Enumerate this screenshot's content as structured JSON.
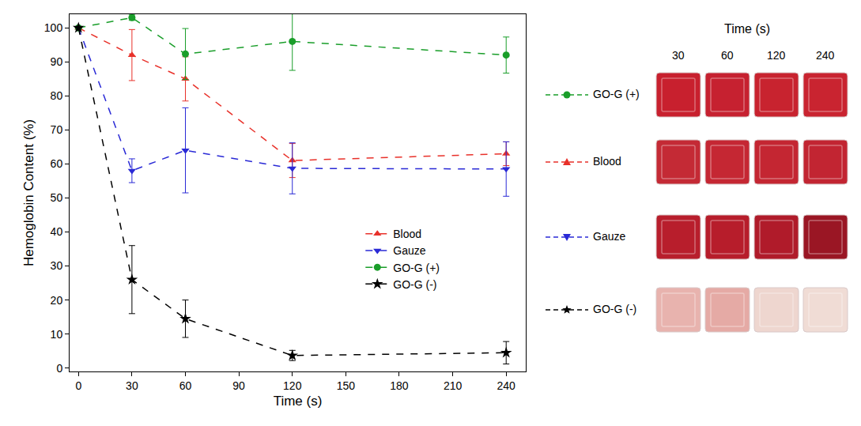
{
  "chart_data": {
    "type": "line",
    "x_label": "Time (s)",
    "y_label": "Hemoglobin Content (%)",
    "x": [
      0,
      30,
      60,
      120,
      240
    ],
    "xlim": [
      -5,
      251
    ],
    "xticks": [
      0,
      30,
      60,
      90,
      120,
      150,
      180,
      210,
      240
    ],
    "ylim": [
      -1,
      104
    ],
    "yticks": [
      0,
      10,
      20,
      30,
      40,
      50,
      60,
      70,
      80,
      90,
      100
    ],
    "grid": false,
    "legend": "right",
    "series": [
      {
        "name": "Blood",
        "color": "#e8312a",
        "marker": "triangle-up",
        "line_style": "dash",
        "values": [
          100,
          92,
          85,
          61,
          63
        ],
        "errors": [
          0,
          7.5,
          6.5,
          5,
          3.5
        ]
      },
      {
        "name": "Gauze",
        "color": "#2a2ad6",
        "marker": "triangle-down",
        "line_style": "dash",
        "values": [
          100,
          58,
          64,
          58.7,
          58.5
        ],
        "errors": [
          0,
          3.5,
          12.5,
          7.5,
          8
        ]
      },
      {
        "name": "GO-G (+)",
        "color": "#1a9e2a",
        "marker": "circle",
        "line_style": "dash",
        "values": [
          100,
          103,
          92.3,
          96,
          92
        ],
        "errors": [
          0,
          0.8,
          7.5,
          8.5,
          5.3
        ]
      },
      {
        "name": "GO-G (-)",
        "color": "#000000",
        "marker": "star",
        "line_style": "dash",
        "values": [
          100,
          26,
          14.5,
          3.7,
          4.5
        ],
        "errors": [
          0,
          10,
          5.5,
          1.5,
          3.3
        ]
      }
    ]
  },
  "photo_panel": {
    "title": "Time (s)",
    "columns": [
      30,
      60,
      120,
      240
    ],
    "rows": [
      "GO-G (+)",
      "Blood",
      "Gauze",
      "GO-G (-)"
    ],
    "well_colors": [
      [
        "#c8202e",
        "#c62130",
        "#c8232f",
        "#c92430"
      ],
      [
        "#c42a35",
        "#c52733",
        "#c42632",
        "#c22532"
      ],
      [
        "#b81e2c",
        "#b71d2b",
        "#b01b2a",
        "#9a1624"
      ],
      [
        "#e8b3ae",
        "#e5aaa5",
        "#eed6cf",
        "#f0dcd5"
      ]
    ]
  }
}
